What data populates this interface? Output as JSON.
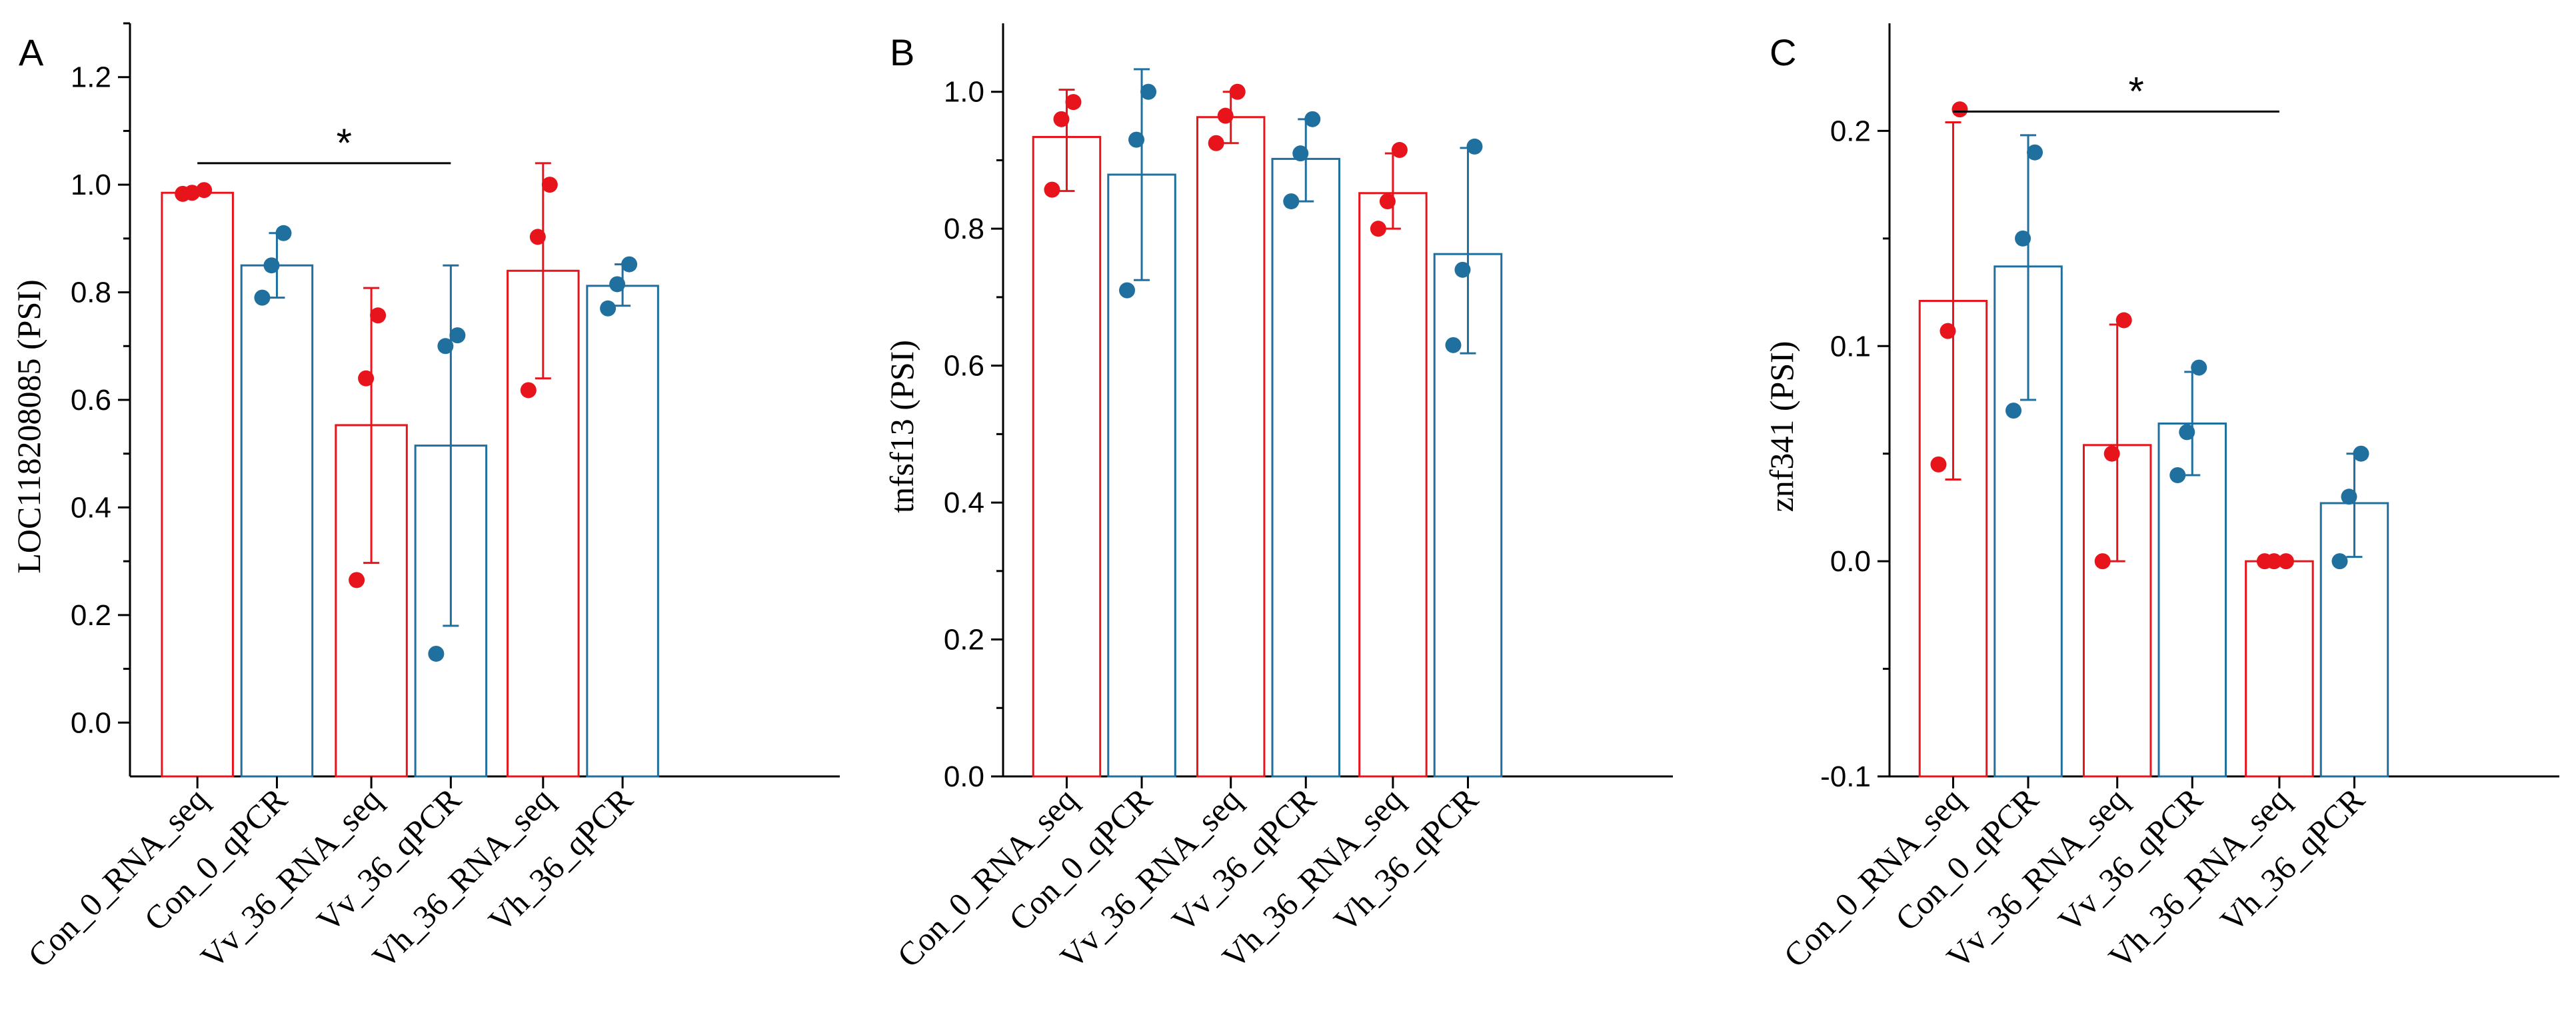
{
  "colors": {
    "rna_seq": "#e8141b",
    "qpcr": "#1f6f9f",
    "axis": "#000000"
  },
  "chart_data": [
    {
      "panel": "A",
      "type": "bar",
      "ylabel": "LOC118208085 (PSI)",
      "ylim": [
        -0.1,
        1.3
      ],
      "yticks": [
        "0.0",
        "0.2",
        "0.4",
        "0.6",
        "0.8",
        "1.0",
        "1.2"
      ],
      "yticks_values": [
        0.0,
        0.2,
        0.4,
        0.6,
        0.8,
        1.0,
        1.2
      ],
      "categories": [
        "Con_0_RNA_seq",
        "Con_0_qPCR",
        "Vv_36_RNA_seq",
        "Vv_36_qPCR",
        "Vh_36_RNA_seq",
        "Vh_36_qPCR"
      ],
      "values": [
        0.985,
        0.85,
        0.553,
        0.515,
        0.84,
        0.812
      ],
      "err_low": [
        0.98,
        0.79,
        0.297,
        0.18,
        0.64,
        0.775
      ],
      "err_high": [
        0.992,
        0.91,
        0.808,
        0.85,
        1.04,
        0.852
      ],
      "points": [
        [
          0.99,
          0.985,
          0.983
        ],
        [
          0.91,
          0.85,
          0.79
        ],
        [
          0.757,
          0.64,
          0.265
        ],
        [
          0.72,
          0.7,
          0.128
        ],
        [
          1.0,
          0.903,
          0.618
        ],
        [
          0.852,
          0.815,
          0.77
        ]
      ],
      "series_kind": [
        "rna_seq",
        "qpcr",
        "rna_seq",
        "qpcr",
        "rna_seq",
        "qpcr"
      ],
      "significance": {
        "from": 0,
        "to": 3,
        "y": 1.04,
        "label": "*"
      }
    },
    {
      "panel": "B",
      "type": "bar",
      "ylabel": "tnfsf13 (PSI)",
      "ylim": [
        0.0,
        1.1
      ],
      "yticks": [
        "0.0",
        "0.2",
        "0.4",
        "0.6",
        "0.8",
        "1.0"
      ],
      "yticks_values": [
        0.0,
        0.2,
        0.4,
        0.6,
        0.8,
        1.0
      ],
      "categories": [
        "Con_0_RNA_seq",
        "Con_0_qPCR",
        "Vv_36_RNA_seq",
        "Vv_36_qPCR",
        "Vh_36_RNA_seq",
        "Vh_36_qPCR"
      ],
      "values": [
        0.934,
        0.879,
        0.963,
        0.902,
        0.852,
        0.763
      ],
      "err_low": [
        0.855,
        0.725,
        0.925,
        0.84,
        0.8,
        0.618
      ],
      "err_high": [
        1.003,
        1.033,
        1.0,
        0.96,
        0.91,
        0.918
      ],
      "points": [
        [
          0.985,
          0.96,
          0.857
        ],
        [
          1.0,
          0.93,
          0.71
        ],
        [
          1.0,
          0.965,
          0.925
        ],
        [
          0.96,
          0.91,
          0.84
        ],
        [
          0.915,
          0.84,
          0.8
        ],
        [
          0.92,
          0.74,
          0.63
        ]
      ],
      "series_kind": [
        "rna_seq",
        "qpcr",
        "rna_seq",
        "qpcr",
        "rna_seq",
        "qpcr"
      ],
      "significance": null
    },
    {
      "panel": "C",
      "type": "bar",
      "ylabel": "znf341 (PSI)",
      "ylim": [
        -0.1,
        0.25
      ],
      "yticks": [
        "-0.1",
        "0.0",
        "0.1",
        "0.2"
      ],
      "yticks_values": [
        -0.1,
        0.0,
        0.1,
        0.2
      ],
      "categories": [
        "Con_0_RNA_seq",
        "Con_0_qPCR",
        "Vv_36_RNA_seq",
        "Vv_36_qPCR",
        "Vh_36_RNA_seq",
        "Vh_36_qPCR"
      ],
      "values": [
        0.121,
        0.137,
        0.054,
        0.064,
        0.0,
        0.027
      ],
      "err_low": [
        0.038,
        0.075,
        0.0,
        0.04,
        0.0,
        0.002
      ],
      "err_high": [
        0.204,
        0.198,
        0.11,
        0.088,
        0.0,
        0.05
      ],
      "points": [
        [
          0.21,
          0.107,
          0.045
        ],
        [
          0.19,
          0.15,
          0.07
        ],
        [
          0.112,
          0.05,
          0.0
        ],
        [
          0.09,
          0.06,
          0.04
        ],
        [
          0.0,
          0.0,
          0.0
        ],
        [
          0.05,
          0.03,
          0.0
        ]
      ],
      "series_kind": [
        "rna_seq",
        "qpcr",
        "rna_seq",
        "qpcr",
        "rna_seq",
        "qpcr"
      ],
      "significance": {
        "from": 0,
        "to": 4,
        "y": 0.209,
        "label": "*"
      }
    }
  ]
}
